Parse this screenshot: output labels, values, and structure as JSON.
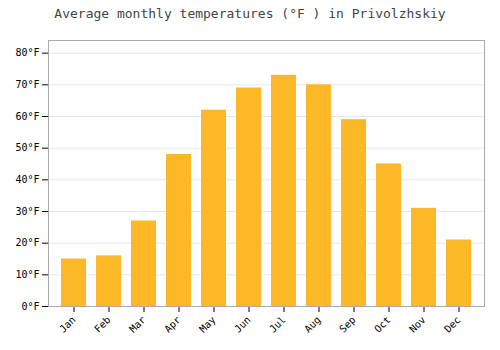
{
  "chart_data": {
    "type": "bar",
    "title": "Average monthly temperatures (°F ) in Privolzhskiy",
    "categories": [
      "Jan",
      "Feb",
      "Mar",
      "Apr",
      "May",
      "Jun",
      "Jul",
      "Aug",
      "Sep",
      "Oct",
      "Nov",
      "Dec"
    ],
    "values": [
      15,
      16,
      27,
      48,
      62,
      69,
      73,
      70,
      59,
      45,
      31,
      21
    ],
    "color": "#FDB827",
    "ylim": [
      0,
      84
    ],
    "yticks": [
      {
        "value": 0,
        "label": "0°F"
      },
      {
        "value": 10,
        "label": "10°F"
      },
      {
        "value": 20,
        "label": "20°F"
      },
      {
        "value": 30,
        "label": "30°F"
      },
      {
        "value": 40,
        "label": "40°F"
      },
      {
        "value": 50,
        "label": "50°F"
      },
      {
        "value": 60,
        "label": "60°F"
      },
      {
        "value": 70,
        "label": "70°F"
      },
      {
        "value": 80,
        "label": "80°F"
      }
    ],
    "grid": true
  }
}
